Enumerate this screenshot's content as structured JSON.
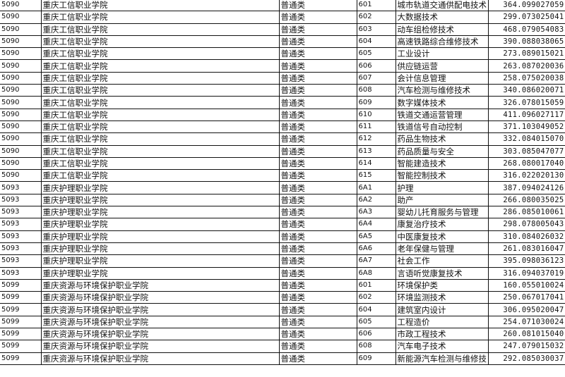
{
  "rows": [
    [
      "5090",
      "重庆工信职业学院",
      "普通类",
      "601",
      "城市轨道交通供配电技术",
      "364.099027059"
    ],
    [
      "5090",
      "重庆工信职业学院",
      "普通类",
      "602",
      "大数据技术",
      "299.073025041"
    ],
    [
      "5090",
      "重庆工信职业学院",
      "普通类",
      "603",
      "动车组检修技术",
      "468.079054083"
    ],
    [
      "5090",
      "重庆工信职业学院",
      "普通类",
      "604",
      "高速铁路综合维修技术",
      "390.088038065"
    ],
    [
      "5090",
      "重庆工信职业学院",
      "普通类",
      "605",
      "工业设计",
      "273.089015021"
    ],
    [
      "5090",
      "重庆工信职业学院",
      "普通类",
      "606",
      "供应链运营",
      "263.087020036"
    ],
    [
      "5090",
      "重庆工信职业学院",
      "普通类",
      "607",
      "会计信息管理",
      "258.075020038"
    ],
    [
      "5090",
      "重庆工信职业学院",
      "普通类",
      "608",
      "汽车检测与维修技术",
      "340.086020071"
    ],
    [
      "5090",
      "重庆工信职业学院",
      "普通类",
      "609",
      "数字媒体技术",
      "326.078015059"
    ],
    [
      "5090",
      "重庆工信职业学院",
      "普通类",
      "610",
      "铁道交通运营管理",
      "411.096027117"
    ],
    [
      "5090",
      "重庆工信职业学院",
      "普通类",
      "611",
      "铁道信号自动控制",
      "371.103049052"
    ],
    [
      "5090",
      "重庆工信职业学院",
      "普通类",
      "612",
      "药品生物技术",
      "332.084015070"
    ],
    [
      "5090",
      "重庆工信职业学院",
      "普通类",
      "613",
      "药品质量与安全",
      "303.085047077"
    ],
    [
      "5090",
      "重庆工信职业学院",
      "普通类",
      "614",
      "智能建造技术",
      "268.080017040"
    ],
    [
      "5090",
      "重庆工信职业学院",
      "普通类",
      "615",
      "智能控制技术",
      "316.022020130"
    ],
    [
      "5093",
      "重庆护理职业学院",
      "普通类",
      "6A1",
      "护理",
      "387.094024126"
    ],
    [
      "5093",
      "重庆护理职业学院",
      "普通类",
      "6A2",
      "助产",
      "266.080035025"
    ],
    [
      "5093",
      "重庆护理职业学院",
      "普通类",
      "6A3",
      "婴幼儿托育服务与管理",
      "286.085010061"
    ],
    [
      "5093",
      "重庆护理职业学院",
      "普通类",
      "6A4",
      "康复治疗技术",
      "298.078005043"
    ],
    [
      "5093",
      "重庆护理职业学院",
      "普通类",
      "6A5",
      "中医康复技术",
      "310.084026032"
    ],
    [
      "5093",
      "重庆护理职业学院",
      "普通类",
      "6A6",
      "老年保健与管理",
      "261.083016047"
    ],
    [
      "5093",
      "重庆护理职业学院",
      "普通类",
      "6A7",
      "社会工作",
      "395.098036123"
    ],
    [
      "5093",
      "重庆护理职业学院",
      "普通类",
      "6A8",
      "言语听觉康复技术",
      "316.094037019"
    ],
    [
      "5099",
      "重庆资源与环境保护职业学院",
      "普通类",
      "601",
      "环境保护类",
      "160.055010024"
    ],
    [
      "5099",
      "重庆资源与环境保护职业学院",
      "普通类",
      "602",
      "环境监测技术",
      "250.067017041"
    ],
    [
      "5099",
      "重庆资源与环境保护职业学院",
      "普通类",
      "604",
      "建筑室内设计",
      "306.095020047"
    ],
    [
      "5099",
      "重庆资源与环境保护职业学院",
      "普通类",
      "605",
      "工程造价",
      "254.071030024"
    ],
    [
      "5099",
      "重庆资源与环境保护职业学院",
      "普通类",
      "606",
      "市政工程技术",
      "260.081015040"
    ],
    [
      "5099",
      "重庆资源与环境保护职业学院",
      "普通类",
      "608",
      "汽车电子技术",
      "247.079015032"
    ],
    [
      "5099",
      "重庆资源与环境保护职业学院",
      "普通类",
      "609",
      "新能源汽车检测与维修技",
      "292.085030037"
    ]
  ]
}
